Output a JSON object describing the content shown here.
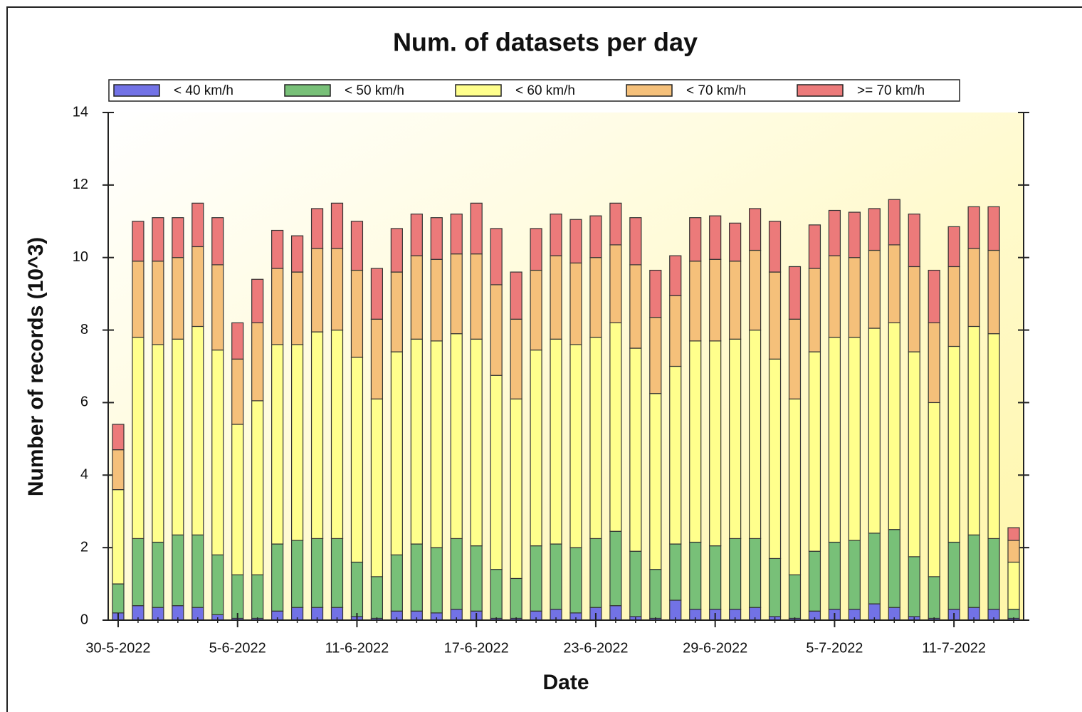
{
  "chart_data": {
    "type": "stacked-bar",
    "title": "Num. of datasets per day",
    "x_label": "Date",
    "y_label": "Number of records (10^3)",
    "categories": [
      "30-5-2022",
      null,
      null,
      null,
      null,
      null,
      "5-6-2022",
      null,
      null,
      null,
      null,
      null,
      "11-6-2022",
      null,
      null,
      null,
      null,
      null,
      "17-6-2022",
      null,
      null,
      null,
      null,
      null,
      "23-6-2022",
      null,
      null,
      null,
      null,
      null,
      "29-6-2022",
      null,
      null,
      null,
      null,
      null,
      "5-7-2022",
      null,
      null,
      null,
      null,
      null,
      "11-7-2022",
      null,
      null,
      null
    ],
    "ylim": [
      0,
      14
    ],
    "yticks": [
      0,
      2,
      4,
      6,
      8,
      10,
      12,
      14
    ],
    "series": [
      {
        "name": "< 40 km/h",
        "color": "#7272e6",
        "values": [
          0.2,
          0.4,
          0.35,
          0.4,
          0.35,
          0.15,
          0.05,
          0.05,
          0.25,
          0.35,
          0.35,
          0.35,
          0.1,
          0.05,
          0.25,
          0.25,
          0.2,
          0.3,
          0.25,
          0.05,
          0.05,
          0.25,
          0.3,
          0.2,
          0.35,
          0.4,
          0.1,
          0.05,
          0.55,
          0.3,
          0.3,
          0.3,
          0.35,
          0.1,
          0.05,
          0.25,
          0.3,
          0.3,
          0.45,
          0.35,
          0.1,
          0.05,
          0.3,
          0.35,
          0.3,
          0.05
        ]
      },
      {
        "name": "< 50 km/h",
        "color": "#78c078",
        "values": [
          0.8,
          1.85,
          1.8,
          1.95,
          2.0,
          1.65,
          1.2,
          1.2,
          1.85,
          1.85,
          1.9,
          1.9,
          1.5,
          1.15,
          1.55,
          1.85,
          1.8,
          1.95,
          1.8,
          1.35,
          1.1,
          1.8,
          1.8,
          1.8,
          1.9,
          2.05,
          1.8,
          1.35,
          1.55,
          1.85,
          1.75,
          1.95,
          1.9,
          1.6,
          1.2,
          1.65,
          1.85,
          1.9,
          1.95,
          2.15,
          1.65,
          1.15,
          1.85,
          2.0,
          1.95,
          0.25
        ]
      },
      {
        "name": "< 60 km/h",
        "color": "#ffff8c",
        "values": [
          2.6,
          5.55,
          5.45,
          5.4,
          5.75,
          5.65,
          4.15,
          4.8,
          5.5,
          5.4,
          5.7,
          5.75,
          5.65,
          4.9,
          5.6,
          5.65,
          5.7,
          5.65,
          5.7,
          5.35,
          4.95,
          5.4,
          5.65,
          5.6,
          5.55,
          5.75,
          5.6,
          4.85,
          4.9,
          5.55,
          5.65,
          5.5,
          5.75,
          5.5,
          4.85,
          5.5,
          5.65,
          5.6,
          5.65,
          5.7,
          5.65,
          4.8,
          5.4,
          5.75,
          5.65,
          1.3
        ]
      },
      {
        "name": "< 70 km/h",
        "color": "#f5c07a",
        "values": [
          1.1,
          2.1,
          2.3,
          2.25,
          2.2,
          2.35,
          1.8,
          2.15,
          2.1,
          2.0,
          2.3,
          2.25,
          2.4,
          2.2,
          2.2,
          2.3,
          2.25,
          2.2,
          2.35,
          2.5,
          2.2,
          2.2,
          2.3,
          2.25,
          2.2,
          2.15,
          2.3,
          2.1,
          1.95,
          2.2,
          2.25,
          2.15,
          2.2,
          2.4,
          2.2,
          2.3,
          2.25,
          2.2,
          2.15,
          2.15,
          2.35,
          2.2,
          2.2,
          2.15,
          2.3,
          0.6
        ]
      },
      {
        "name": ">= 70 km/h",
        "color": "#ec7a7a",
        "values": [
          0.7,
          1.1,
          1.2,
          1.1,
          1.2,
          1.3,
          1.0,
          1.2,
          1.05,
          1.0,
          1.1,
          1.25,
          1.35,
          1.4,
          1.2,
          1.15,
          1.15,
          1.1,
          1.4,
          1.55,
          1.3,
          1.15,
          1.15,
          1.2,
          1.15,
          1.15,
          1.3,
          1.3,
          1.1,
          1.2,
          1.2,
          1.05,
          1.15,
          1.4,
          1.45,
          1.2,
          1.25,
          1.25,
          1.15,
          1.25,
          1.45,
          1.45,
          1.1,
          1.15,
          1.2,
          0.35
        ]
      }
    ]
  }
}
